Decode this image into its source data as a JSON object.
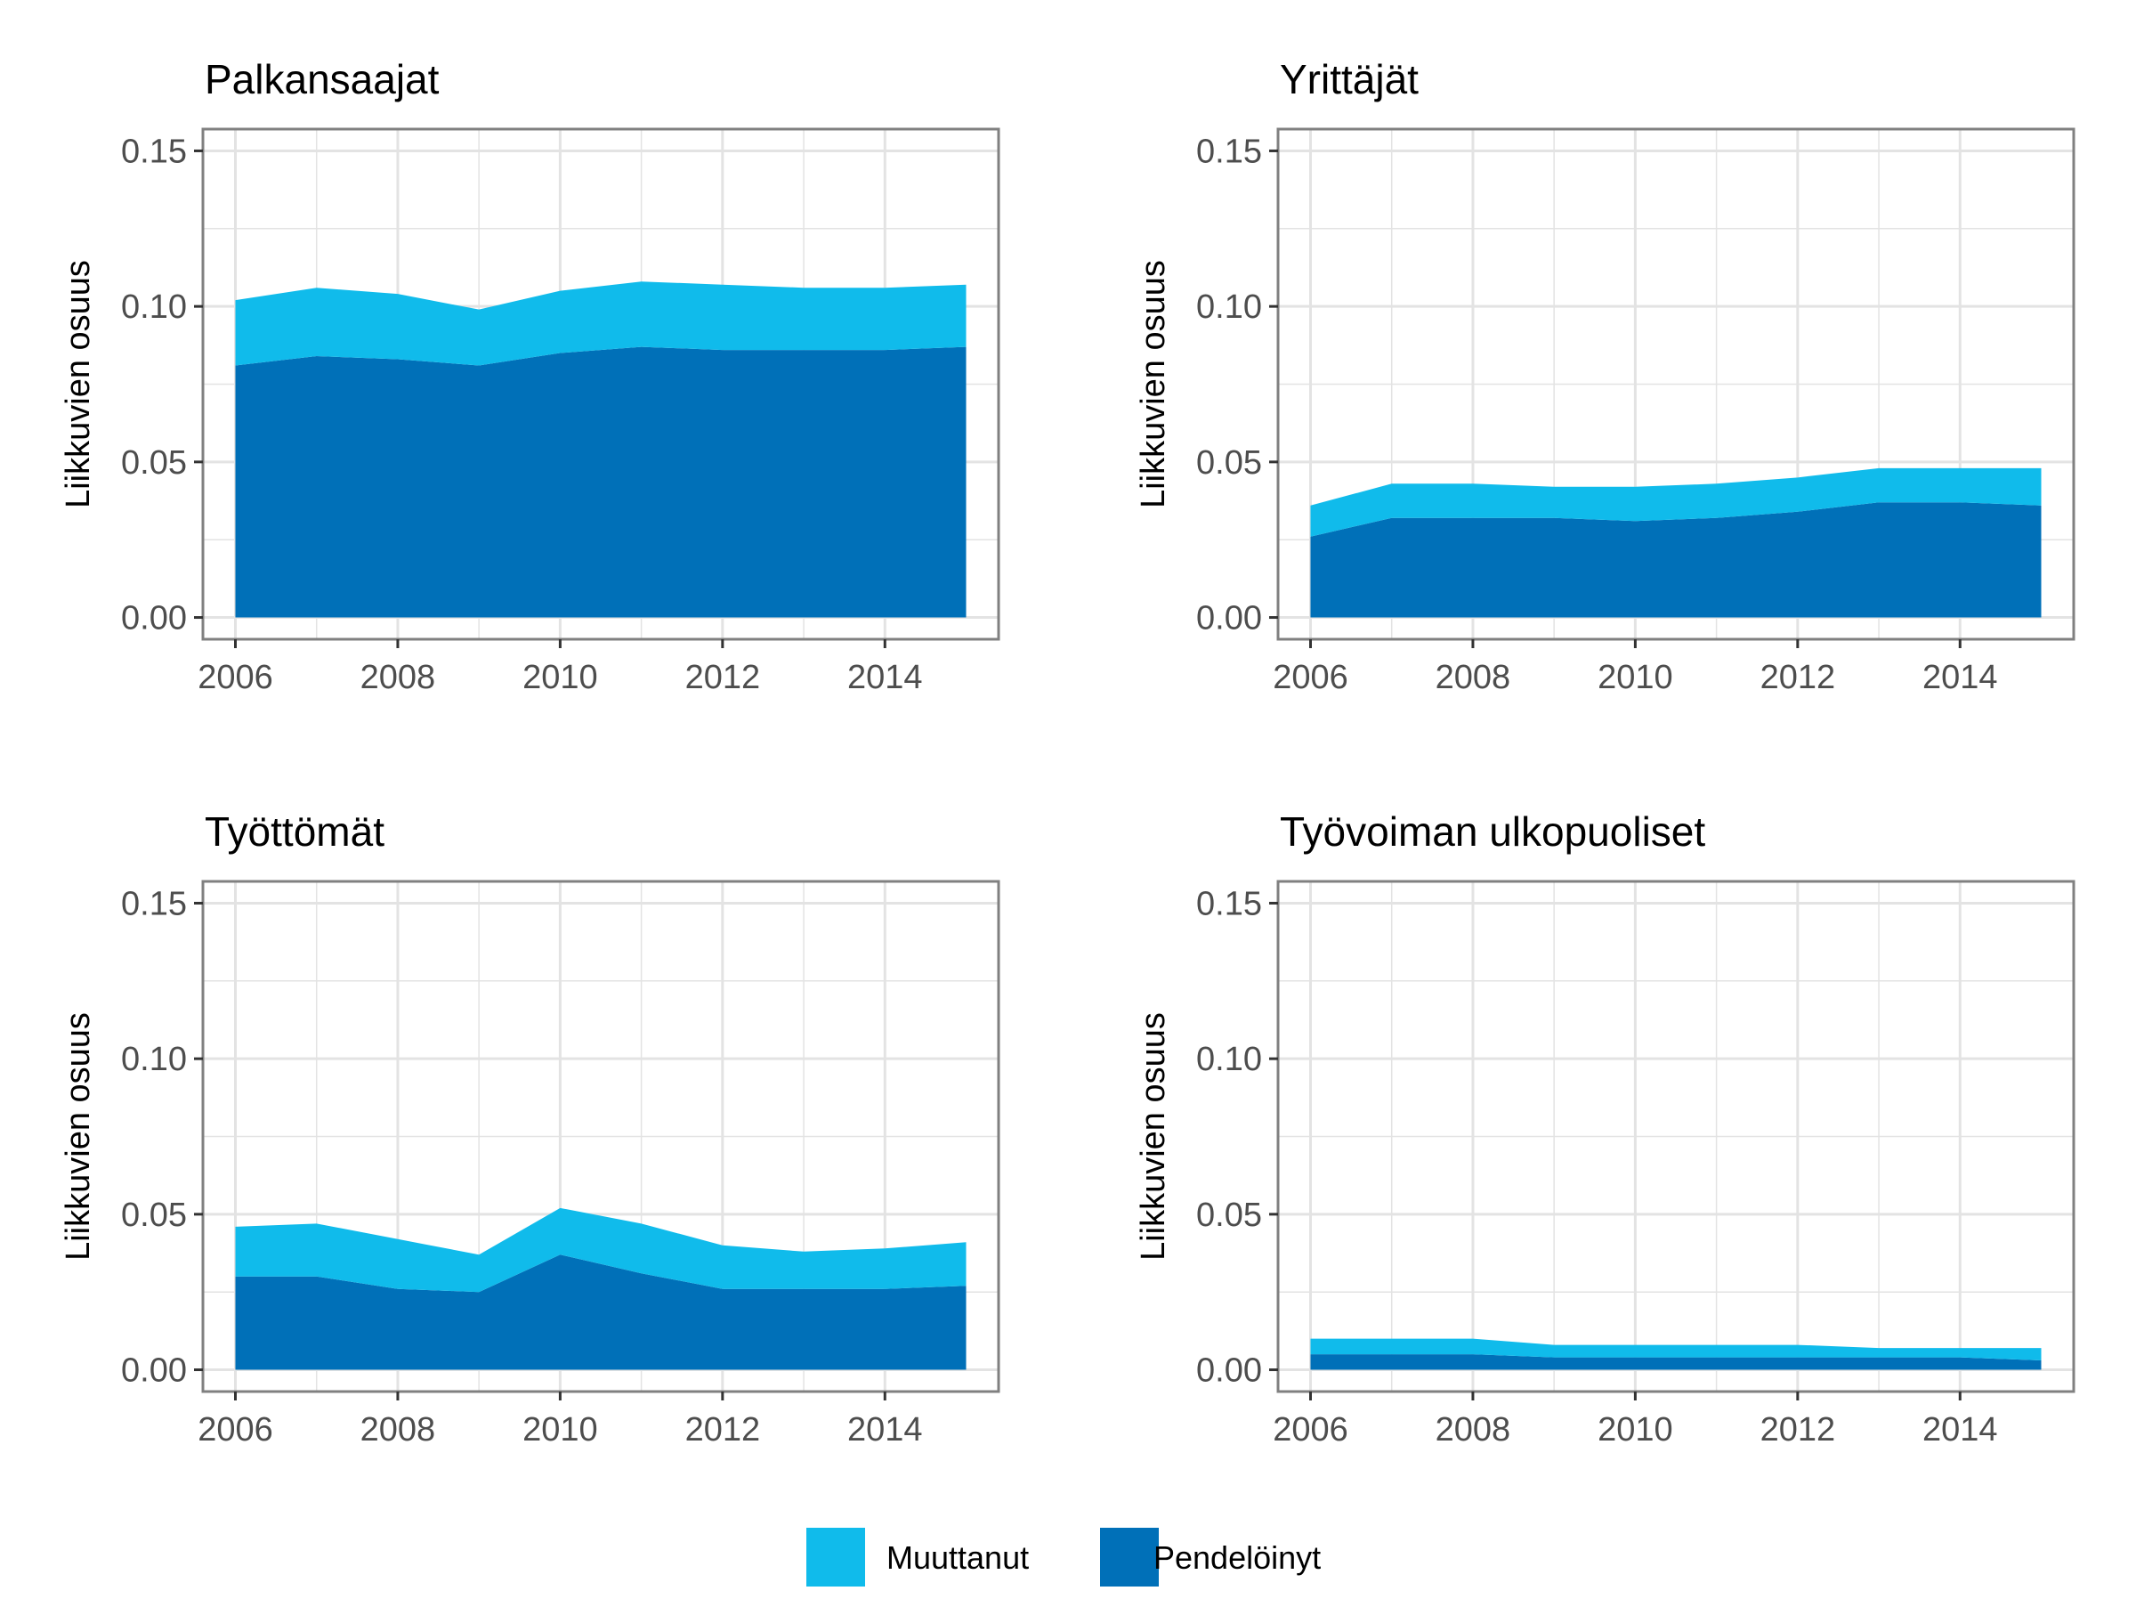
{
  "colors": {
    "Muuttanut": "#10BBEB",
    "Pendelöinyt": "#0070B8",
    "grid": "#e3e3e3",
    "frame": "#808080"
  },
  "legend": {
    "items": [
      {
        "label": "Muuttanut"
      },
      {
        "label": "Pendelöinyt"
      }
    ]
  },
  "chart_data": [
    {
      "type": "area",
      "stacked": true,
      "title": "Palkansaajat",
      "xlabel": "",
      "ylabel": "Liikkuvien osuus",
      "xlim": [
        2005.6,
        2015.4
      ],
      "ylim": [
        -0.007,
        0.157
      ],
      "xticks": [
        "2006",
        "2008",
        "2010",
        "2012",
        "2014"
      ],
      "yticks": [
        "0.00",
        "0.05",
        "0.10",
        "0.15"
      ],
      "grid": true,
      "x": [
        2006,
        2007,
        2008,
        2009,
        2010,
        2011,
        2012,
        2013,
        2014,
        2015
      ],
      "series": [
        {
          "name": "Pendelöinyt",
          "values": [
            0.081,
            0.084,
            0.083,
            0.081,
            0.085,
            0.087,
            0.086,
            0.086,
            0.086,
            0.087
          ]
        },
        {
          "name": "Muuttanut",
          "values": [
            0.021,
            0.022,
            0.021,
            0.018,
            0.02,
            0.021,
            0.021,
            0.02,
            0.02,
            0.02
          ]
        }
      ]
    },
    {
      "type": "area",
      "stacked": true,
      "title": "Yrittäjät",
      "xlabel": "",
      "ylabel": "Liikkuvien osuus",
      "xlim": [
        2005.6,
        2015.4
      ],
      "ylim": [
        -0.007,
        0.157
      ],
      "xticks": [
        "2006",
        "2008",
        "2010",
        "2012",
        "2014"
      ],
      "yticks": [
        "0.00",
        "0.05",
        "0.10",
        "0.15"
      ],
      "grid": true,
      "x": [
        2006,
        2007,
        2008,
        2009,
        2010,
        2011,
        2012,
        2013,
        2014,
        2015
      ],
      "series": [
        {
          "name": "Pendelöinyt",
          "values": [
            0.026,
            0.032,
            0.032,
            0.032,
            0.031,
            0.032,
            0.034,
            0.037,
            0.037,
            0.036
          ]
        },
        {
          "name": "Muuttanut",
          "values": [
            0.01,
            0.011,
            0.011,
            0.01,
            0.011,
            0.011,
            0.011,
            0.011,
            0.011,
            0.012
          ]
        }
      ]
    },
    {
      "type": "area",
      "stacked": true,
      "title": "Työttömät",
      "xlabel": "",
      "ylabel": "Liikkuvien osuus",
      "xlim": [
        2005.6,
        2015.4
      ],
      "ylim": [
        -0.007,
        0.157
      ],
      "xticks": [
        "2006",
        "2008",
        "2010",
        "2012",
        "2014"
      ],
      "yticks": [
        "0.00",
        "0.05",
        "0.10",
        "0.15"
      ],
      "grid": true,
      "x": [
        2006,
        2007,
        2008,
        2009,
        2010,
        2011,
        2012,
        2013,
        2014,
        2015
      ],
      "series": [
        {
          "name": "Pendelöinyt",
          "values": [
            0.03,
            0.03,
            0.026,
            0.025,
            0.037,
            0.031,
            0.026,
            0.026,
            0.026,
            0.027
          ]
        },
        {
          "name": "Muuttanut",
          "values": [
            0.016,
            0.017,
            0.016,
            0.012,
            0.015,
            0.016,
            0.014,
            0.012,
            0.013,
            0.014
          ]
        }
      ]
    },
    {
      "type": "area",
      "stacked": true,
      "title": "Työvoiman ulkopuoliset",
      "xlabel": "",
      "ylabel": "Liikkuvien osuus",
      "xlim": [
        2005.6,
        2015.4
      ],
      "ylim": [
        -0.007,
        0.157
      ],
      "xticks": [
        "2006",
        "2008",
        "2010",
        "2012",
        "2014"
      ],
      "yticks": [
        "0.00",
        "0.05",
        "0.10",
        "0.15"
      ],
      "grid": true,
      "x": [
        2006,
        2007,
        2008,
        2009,
        2010,
        2011,
        2012,
        2013,
        2014,
        2015
      ],
      "series": [
        {
          "name": "Pendelöinyt",
          "values": [
            0.005,
            0.005,
            0.005,
            0.004,
            0.004,
            0.004,
            0.004,
            0.004,
            0.004,
            0.003
          ]
        },
        {
          "name": "Muuttanut",
          "values": [
            0.005,
            0.005,
            0.005,
            0.004,
            0.004,
            0.004,
            0.004,
            0.003,
            0.003,
            0.004
          ]
        }
      ]
    }
  ]
}
